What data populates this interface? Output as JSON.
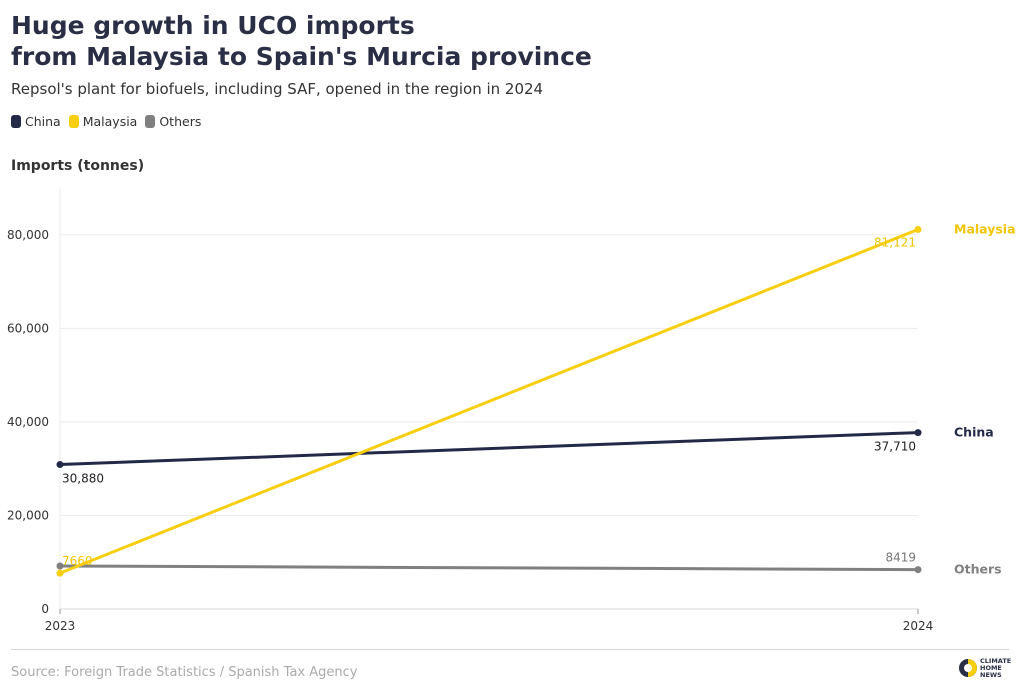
{
  "chart_data": {
    "type": "line",
    "title_lines": [
      "Huge growth in UCO imports",
      "from Malaysia to Spain's Murcia province"
    ],
    "subtitle": "Repsol's plant for biofuels, including SAF, opened in the region in 2024",
    "ylabel": "Imports (tonnes)",
    "x": [
      "2023",
      "2024"
    ],
    "ylim": [
      0,
      90000
    ],
    "yticks": [
      0,
      20000,
      40000,
      60000,
      80000
    ],
    "ytick_labels": [
      "0",
      "20,000",
      "40,000",
      "60,000",
      "80,000"
    ],
    "grid": true,
    "legend_placement": "top-left",
    "series": [
      {
        "name": "China",
        "values": [
          30880,
          37710
        ],
        "point_labels": [
          "30,880",
          "37,710"
        ],
        "color": "#232a48"
      },
      {
        "name": "Malaysia",
        "values": [
          7660,
          81121
        ],
        "point_labels": [
          "7660",
          "81,121"
        ],
        "color": "#f7cf10"
      },
      {
        "name": "Others",
        "values": [
          9200,
          8419
        ],
        "point_labels": [
          "",
          "8419"
        ],
        "color": "#808080"
      }
    ]
  },
  "source": "Source: Foreign Trade Statistics / Spanish Tax Agency",
  "logo": {
    "lines": [
      "CLIMATE",
      "HOME",
      "NEWS"
    ]
  }
}
